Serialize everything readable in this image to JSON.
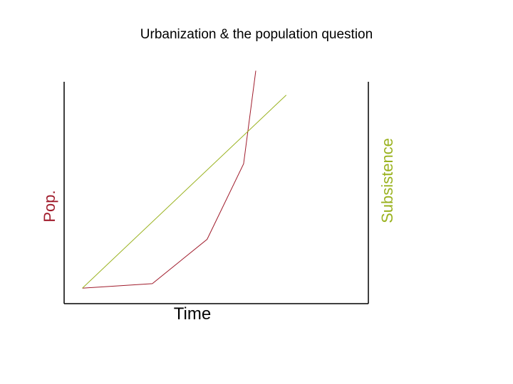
{
  "chart_data": {
    "type": "line",
    "title": "Urbanization & the population question",
    "xlabel": "Time",
    "ylabel_left": "Pop.",
    "ylabel_right": "Subsistence",
    "xlim": [
      0,
      100
    ],
    "ylim": [
      0,
      100
    ],
    "grid": false,
    "series": [
      {
        "color": "#a01c2c",
        "points": [
          [
            6,
            7
          ],
          [
            29,
            9
          ],
          [
            47,
            29
          ],
          [
            59,
            63
          ],
          [
            63,
            105
          ]
        ]
      },
      {
        "color": "#9ab21f",
        "points": [
          [
            6,
            7
          ],
          [
            73,
            94
          ]
        ]
      }
    ],
    "colors": {
      "pop": "#a01c2c",
      "subsistence": "#9ab21f",
      "axis": "#000000"
    }
  }
}
